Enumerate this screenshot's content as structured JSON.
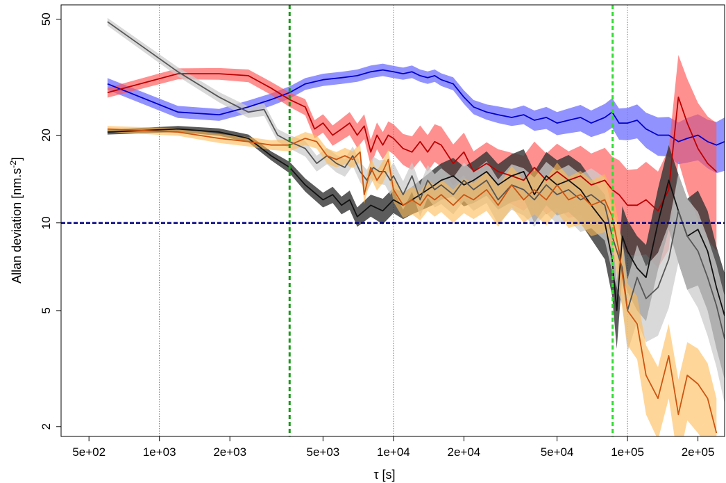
{
  "chart_data": {
    "type": "line",
    "xlabel": "τ [s]",
    "ylabel_main": "Allan deviation [nm.s",
    "ylabel_sup": "-2",
    "ylabel_close": "]",
    "x_scale": "log",
    "y_scale": "log",
    "xlim": [
      380,
      260000
    ],
    "ylim": [
      1.85,
      56
    ],
    "x_ticks": [
      {
        "value": 500,
        "label": "5e+02"
      },
      {
        "value": 1000,
        "label": "1e+03"
      },
      {
        "value": 2000,
        "label": "2e+03"
      },
      {
        "value": 5000,
        "label": "5e+03"
      },
      {
        "value": 10000,
        "label": "1e+04"
      },
      {
        "value": 20000,
        "label": "2e+04"
      },
      {
        "value": 50000,
        "label": "5e+04"
      },
      {
        "value": 100000,
        "label": "1e+05"
      },
      {
        "value": 200000,
        "label": "2e+05"
      }
    ],
    "y_ticks": [
      {
        "value": 2,
        "label": "2"
      },
      {
        "value": 5,
        "label": "5"
      },
      {
        "value": 10,
        "label": "10"
      },
      {
        "value": 20,
        "label": "20"
      },
      {
        "value": 50,
        "label": "50"
      }
    ],
    "vertical_gridlines": [
      {
        "x": 1000,
        "color": "#555555",
        "style": "dotted"
      },
      {
        "x": 10000,
        "color": "#555555",
        "style": "dotted"
      },
      {
        "x": 100000,
        "color": "#555555",
        "style": "dotted"
      },
      {
        "x": 3600,
        "color": "#1a9a1a",
        "style": "dashed"
      },
      {
        "x": 86400,
        "color": "#33dd33",
        "style": "dashed"
      }
    ],
    "horizontal_reference": {
      "y": 10,
      "color": "#000080",
      "style": "dashed"
    },
    "series": [
      {
        "line": "#0000cc",
        "band": "#7777ff",
        "band_opacity": 0.8,
        "x": [
          600,
          1200,
          1800,
          2400,
          3000,
          3600,
          4200,
          5000,
          6000,
          7000,
          8000,
          9000,
          10000,
          11000,
          12000,
          13000,
          14000,
          15000,
          16000,
          18000,
          20000,
          22000,
          25000,
          28000,
          32000,
          36000,
          40000,
          45000,
          50000,
          56000,
          63000,
          70000,
          80000,
          86000,
          92000,
          100000,
          110000,
          120000,
          135000,
          150000,
          165000,
          180000,
          200000,
          220000,
          240000,
          260000
        ],
        "y": [
          30,
          24,
          23.5,
          25,
          26.5,
          28,
          30,
          31,
          31.5,
          32,
          33,
          33.5,
          33,
          32.5,
          33,
          32,
          31.5,
          32,
          31,
          30,
          27,
          25,
          24,
          23.5,
          23,
          23.5,
          22.5,
          23,
          22,
          22.5,
          23,
          22,
          23,
          24,
          22,
          22,
          22.5,
          21,
          20,
          20,
          19,
          19.5,
          20,
          19,
          18.5,
          19
        ],
        "lower": [
          28.6,
          22.9,
          22.4,
          23.8,
          25.2,
          26.7,
          28.6,
          29.5,
          30,
          30.5,
          31.4,
          31.9,
          31.4,
          31,
          31.4,
          30.5,
          30,
          30.5,
          29.5,
          28.5,
          25.6,
          23.6,
          22.6,
          22,
          21.5,
          21.8,
          20.7,
          21,
          20,
          20.3,
          20.6,
          19.7,
          20.4,
          21.2,
          19.3,
          19.2,
          19.5,
          18.1,
          17,
          16.9,
          15.9,
          16.1,
          16.4,
          15.4,
          14.8,
          15.1
        ],
        "upper": [
          31.4,
          25.2,
          24.6,
          26.3,
          27.8,
          29.4,
          31.4,
          32.5,
          33,
          33.6,
          34.7,
          35.2,
          34.6,
          34.1,
          34.7,
          33.6,
          33.1,
          33.6,
          32.6,
          31.6,
          28.5,
          26.4,
          25.5,
          25.1,
          24.6,
          25.3,
          24.3,
          25,
          24,
          24.7,
          25.4,
          24.3,
          25.6,
          26.8,
          24.7,
          24.8,
          25.5,
          23.9,
          23,
          23.1,
          22.1,
          22.9,
          23.6,
          22.6,
          22.2,
          23
        ]
      },
      {
        "line": "#bb0000",
        "band": "#ff5555",
        "band_opacity": 0.65,
        "x": [
          600,
          1200,
          1800,
          2400,
          3000,
          3600,
          4200,
          4600,
          5000,
          5500,
          6000,
          6500,
          7000,
          7500,
          8000,
          8500,
          9000,
          9500,
          10000,
          11000,
          12000,
          13000,
          14000,
          15000,
          16000,
          18000,
          20000,
          22000,
          25000,
          28000,
          32000,
          36000,
          40000,
          45000,
          50000,
          56000,
          63000,
          70000,
          80000,
          86000,
          92000,
          100000,
          110000,
          120000,
          135000,
          150000,
          165000,
          180000,
          200000,
          220000,
          240000
        ],
        "y": [
          28,
          32.5,
          32.5,
          32,
          29,
          26.5,
          25,
          21,
          22,
          20,
          21,
          22,
          20,
          21.5,
          17.5,
          20,
          18.5,
          20,
          19.5,
          18,
          17.5,
          19,
          17.5,
          19,
          18.5,
          16,
          17.5,
          15,
          16,
          15,
          14.5,
          14,
          15.5,
          14,
          15,
          14,
          14.5,
          13.5,
          14,
          13,
          12.5,
          11.5,
          11.5,
          12,
          11,
          13,
          27,
          22,
          18,
          16,
          15
        ],
        "lower": [
          26.9,
          31.1,
          31,
          30.4,
          27.5,
          25,
          23.4,
          19.5,
          20.4,
          18.4,
          19.2,
          20,
          18.1,
          19.4,
          15.7,
          17.9,
          16.5,
          17.7,
          17.2,
          15.8,
          15.2,
          16.4,
          15,
          16.2,
          15.6,
          13.4,
          14.6,
          12.4,
          13.1,
          12.1,
          11.6,
          11,
          12,
          10.7,
          11.3,
          10.4,
          10.6,
          9.7,
          9.9,
          9.1,
          8.6,
          7.8,
          7.7,
          7.8,
          7,
          8.1,
          16.3,
          12.8,
          10.2,
          8.8,
          8
        ],
        "upper": [
          29.1,
          33.9,
          34,
          33.6,
          30.5,
          28,
          26.6,
          22.5,
          23.6,
          21.6,
          22.8,
          24,
          21.9,
          23.6,
          19.3,
          22.1,
          20.5,
          22.3,
          21.8,
          20.2,
          19.8,
          21.6,
          20,
          21.8,
          21.4,
          18.6,
          20.4,
          17.6,
          18.9,
          17.9,
          17.4,
          17,
          19,
          17.3,
          18.7,
          17.6,
          18.4,
          17.3,
          18.1,
          16.9,
          16.4,
          15.2,
          15.3,
          16.2,
          15,
          17.9,
          37.7,
          31.2,
          25.8,
          23.2,
          22
        ]
      },
      {
        "line": "#111111",
        "band": "#333333",
        "band_opacity": 0.8,
        "x": [
          600,
          1200,
          1800,
          2400,
          3000,
          3600,
          4200,
          5000,
          5500,
          6000,
          6500,
          7000,
          7500,
          8000,
          9000,
          10000,
          11000,
          12000,
          13000,
          14000,
          15000,
          16000,
          18000,
          20000,
          22000,
          25000,
          28000,
          32000,
          36000,
          40000,
          45000,
          50000,
          56000,
          63000,
          70000,
          80000,
          86000,
          90000,
          95000,
          100000,
          110000,
          120000,
          135000,
          150000,
          165000,
          180000,
          200000,
          220000,
          240000,
          260000
        ],
        "y": [
          20.5,
          21,
          20.5,
          19.5,
          17,
          15.5,
          13.5,
          12,
          12.5,
          11.5,
          12,
          10.5,
          11,
          11.5,
          11,
          12,
          11.5,
          12,
          12.5,
          13,
          13.5,
          14,
          14.5,
          13.5,
          14,
          15,
          13.5,
          14.5,
          15,
          12.5,
          14.5,
          13.5,
          14,
          13,
          11.5,
          10,
          7.5,
          5,
          9,
          8,
          7,
          6.5,
          10,
          14,
          11,
          9,
          9.5,
          8,
          6,
          4.8
        ],
        "lower": [
          20.1,
          20.5,
          19.9,
          18.9,
          16.4,
          14.8,
          12.8,
          11.3,
          11.7,
          10.7,
          11.1,
          9.7,
          10.1,
          10.5,
          9.9,
          10.8,
          10.3,
          10.7,
          11,
          11.3,
          11.6,
          12,
          12.3,
          11.4,
          11.7,
          12.4,
          11.1,
          11.8,
          12.1,
          10,
          11.5,
          10.6,
          10.9,
          10,
          8.8,
          7.5,
          5.6,
          3.7,
          6.6,
          5.8,
          5,
          4.6,
          6.9,
          9.5,
          7.3,
          5.9,
          6.1,
          5,
          3.7,
          2.9
        ],
        "upper": [
          20.9,
          21.5,
          21.1,
          20.1,
          17.6,
          16.2,
          14.2,
          12.7,
          13.3,
          12.3,
          12.9,
          11.3,
          11.9,
          12.5,
          12.1,
          13.2,
          12.7,
          13.3,
          14,
          14.7,
          15.4,
          16,
          16.7,
          15.6,
          16.3,
          17.6,
          15.9,
          17.2,
          17.9,
          15,
          17.5,
          16.4,
          17.1,
          16,
          14.2,
          12.5,
          9.4,
          6.3,
          11.4,
          10.2,
          9,
          8.4,
          13.1,
          18.5,
          14.7,
          12.1,
          12.9,
          11,
          8.3,
          6.7
        ]
      },
      {
        "line": "#555555",
        "band": "#cccccc",
        "band_opacity": 0.75,
        "x": [
          600,
          1200,
          1800,
          2400,
          2800,
          3200,
          3600,
          4200,
          4700,
          5200,
          5700,
          6200,
          6700,
          7200,
          7700,
          8200,
          8700,
          9200,
          9700,
          10000,
          11000,
          12000,
          13000,
          14000,
          15000,
          16000,
          18000,
          20000,
          22000,
          25000,
          28000,
          32000,
          36000,
          40000,
          45000,
          50000,
          56000,
          63000,
          70000,
          80000,
          86000,
          95000,
          100000,
          110000,
          120000,
          135000,
          150000,
          165000,
          180000,
          200000,
          220000,
          240000,
          260000
        ],
        "y": [
          49,
          33,
          27,
          24,
          24.5,
          20,
          19,
          18,
          16,
          17,
          16,
          15.5,
          17,
          15,
          14,
          15.5,
          15,
          15,
          14,
          14.5,
          12.5,
          14.5,
          12,
          14,
          13,
          13.5,
          12.5,
          14,
          13,
          14,
          12,
          13.5,
          13,
          12,
          13.5,
          12.5,
          13,
          12,
          12.5,
          11.5,
          9,
          7,
          5,
          6.5,
          5.5,
          6,
          7.5,
          11,
          9,
          8,
          6.5,
          5.2,
          4
        ],
        "lower": [
          47.5,
          31.8,
          25.9,
          22.9,
          23.3,
          19,
          18,
          16.9,
          15,
          15.9,
          14.9,
          14.4,
          15.7,
          13.8,
          12.8,
          14.1,
          13.6,
          13.5,
          12.5,
          12.9,
          11.1,
          12.8,
          10.5,
          12.2,
          11.3,
          11.6,
          10.7,
          11.9,
          11,
          11.7,
          9.9,
          11.1,
          10.6,
          9.7,
          10.8,
          9.9,
          10.2,
          9.3,
          9.6,
          8.7,
          6.8,
          5.2,
          3.6,
          4.6,
          3.9,
          4.1,
          5.1,
          7.3,
          5.9,
          5.1,
          4.1,
          3.2,
          2.4
        ],
        "upper": [
          50.5,
          34.2,
          28.1,
          25.1,
          25.7,
          21,
          20,
          19.1,
          17,
          18.1,
          17.1,
          16.6,
          18.3,
          16.2,
          15.2,
          16.9,
          16.4,
          16.5,
          15.5,
          16.1,
          13.9,
          16.2,
          13.5,
          15.8,
          14.7,
          15.4,
          14.3,
          16.1,
          15,
          16.3,
          14.1,
          15.9,
          15.4,
          14.3,
          16.2,
          15.1,
          15.8,
          14.7,
          15.4,
          14.3,
          11.2,
          8.8,
          6.4,
          8.4,
          7.1,
          7.9,
          9.9,
          14.7,
          12.1,
          10.9,
          8.9,
          7.2,
          5.6
        ]
      },
      {
        "line": "#cc5511",
        "band": "#ffbb55",
        "band_opacity": 0.6,
        "x": [
          600,
          1200,
          1800,
          2400,
          3000,
          3600,
          4200,
          4700,
          5200,
          5700,
          6200,
          6700,
          7200,
          7500,
          8000,
          8500,
          9000,
          9500,
          10000,
          11000,
          12000,
          13000,
          14000,
          15000,
          16000,
          18000,
          20000,
          22000,
          25000,
          28000,
          32000,
          36000,
          40000,
          45000,
          50000,
          56000,
          63000,
          70000,
          80000,
          86000,
          92000,
          100000,
          110000,
          120000,
          135000,
          150000,
          165000,
          180000,
          200000,
          220000,
          240000
        ],
        "y": [
          21,
          20.5,
          19.5,
          19,
          18.5,
          18.5,
          19.5,
          19,
          17,
          16.5,
          17,
          16.5,
          17.5,
          12.5,
          15.5,
          14,
          15,
          16.5,
          13,
          11.5,
          12,
          11.5,
          12.5,
          12,
          12.5,
          11.5,
          12.5,
          12,
          13,
          11.5,
          13.5,
          12,
          13,
          12,
          13.5,
          12,
          12.5,
          11.5,
          12,
          10.5,
          8,
          5,
          4.5,
          3,
          2.5,
          3.5,
          2.2,
          3,
          2.8,
          2.5,
          1.9
        ],
        "lower": [
          20.5,
          19.9,
          18.8,
          18.3,
          17.8,
          17.6,
          18.5,
          18,
          16,
          15.5,
          15.9,
          15.4,
          16.2,
          11.6,
          14.3,
          12.9,
          13.7,
          15,
          11.8,
          10.4,
          10.7,
          10.2,
          11,
          10.5,
          10.9,
          10,
          10.8,
          10.3,
          11,
          9.7,
          11.3,
          10,
          10.7,
          9.8,
          10.9,
          9.6,
          9.9,
          9,
          9.3,
          8.1,
          6.1,
          3.8,
          3.4,
          2.2,
          1.8,
          2.5,
          1.5,
          2.1,
          1.9,
          1.7,
          1.3
        ],
        "upper": [
          21.5,
          21.1,
          20.2,
          19.7,
          19.2,
          19.4,
          20.5,
          20,
          18,
          17.5,
          18.1,
          17.6,
          18.8,
          13.4,
          16.7,
          15.1,
          16.3,
          18,
          14.2,
          12.6,
          13.3,
          12.8,
          14,
          13.5,
          14.1,
          13,
          14.2,
          13.7,
          15,
          13.3,
          15.7,
          14,
          15.3,
          14.2,
          16.1,
          14.4,
          15.1,
          14,
          14.7,
          12.9,
          9.9,
          6.2,
          5.6,
          3.8,
          3.2,
          4.5,
          2.9,
          3.9,
          3.7,
          3.3,
          2.5
        ]
      }
    ]
  }
}
